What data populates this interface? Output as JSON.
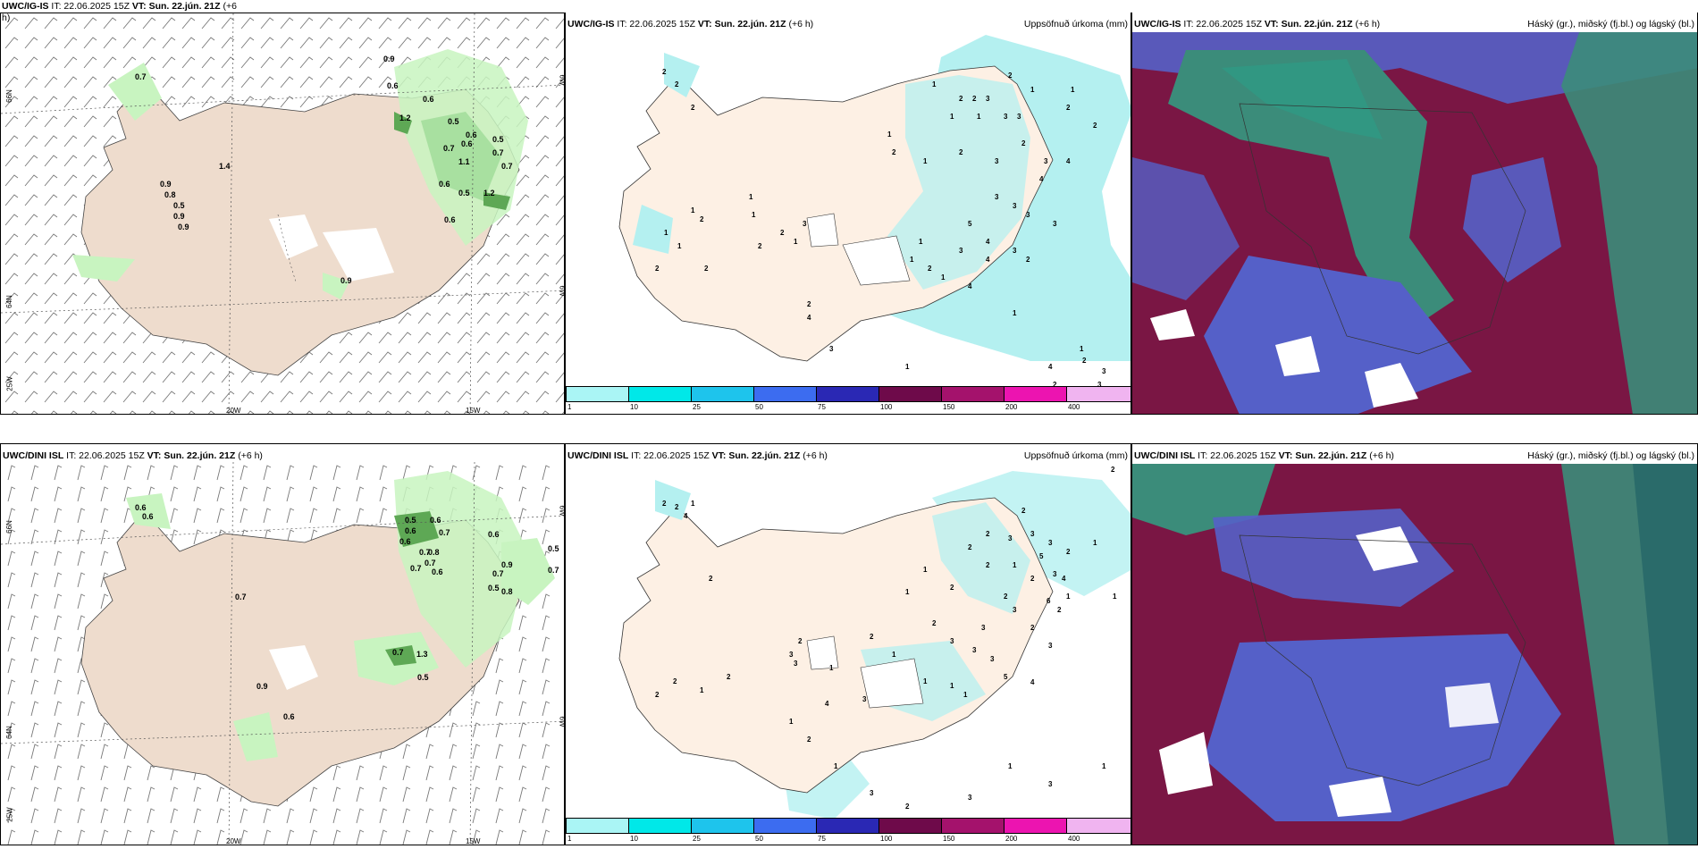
{
  "panels": {
    "wind_top": {
      "model": "UWC/IG-IS",
      "it": "IT: 22.06.2025 15Z",
      "vt": "VT: Sun. 22.jún. 21Z",
      "offset": "(+6",
      "offset_wrap": "h)"
    },
    "precip_top": {
      "model": "UWC/IG-IS",
      "it": "IT: 22.06.2025 15Z",
      "vt": "VT: Sun. 22.jún. 21Z",
      "offset": "(+6 h)",
      "title": "Uppsöfnuð úrkoma (mm)"
    },
    "cloud_top": {
      "model": "UWC/IG-IS",
      "it": "IT: 22.06.2025 15Z",
      "vt": "VT: Sun. 22.jún. 21Z",
      "offset": "(+6 h)",
      "title": "Háský (gr.), miðský (fj.bl.) og lágský (bl.)"
    },
    "wind_bottom": {
      "model": "UWC/DINI ISL",
      "it": "IT: 22.06.2025 15Z",
      "vt": "VT: Sun. 22.jún. 21Z",
      "offset": "(+6 h)"
    },
    "precip_bottom": {
      "model": "UWC/DINI ISL",
      "it": "IT: 22.06.2025 15Z",
      "vt": "VT: Sun. 22.jún. 21Z",
      "offset": "(+6 h)",
      "title": "Uppsöfnuð úrkoma (mm)"
    },
    "cloud_bottom": {
      "model": "UWC/DINI ISL",
      "it": "IT: 22.06.2025 15Z",
      "vt": "VT: Sun. 22.jún. 21Z",
      "offset": "(+6 h)",
      "title": "Háský (gr.), miðský (fj.bl.) og lágský (bl.)"
    }
  },
  "grid_labels": {
    "lat_66": "66N",
    "lat_64": "64N",
    "lon_25": "25W",
    "lon_20": "20W",
    "lon_15": "15W",
    "lon_6": "6W"
  },
  "wind_values_top": [
    "0.7",
    "0.9",
    "0.6",
    "0.6",
    "1.2",
    "0.5",
    "0.6",
    "0.5",
    "0.7",
    "0.6",
    "0.7",
    "0.7",
    "0.6",
    "1.1",
    "0.5",
    "1.2",
    "0.9",
    "0.8",
    "0.5",
    "0.9",
    "0.9",
    "0.6",
    "0.9",
    "1.4"
  ],
  "wind_values_bottom": [
    "0.6",
    "0.6",
    "0.5",
    "0.6",
    "0.6",
    "0.7",
    "0.6",
    "0.8",
    "0.7",
    "0.7",
    "0.6",
    "0.6",
    "0.5",
    "0.7",
    "0.8",
    "0.7",
    "0.7",
    "0.5",
    "0.7",
    "0.9",
    "1.3",
    "0.5",
    "0.9",
    "0.6",
    "0.7"
  ],
  "precip_values_top": [
    "2",
    "2",
    "2",
    "1",
    "2",
    "1",
    "1",
    "1",
    "2",
    "2",
    "3",
    "3",
    "3",
    "2",
    "1",
    "2",
    "1",
    "2",
    "1",
    "2",
    "3",
    "2",
    "3",
    "4",
    "1",
    "1",
    "1",
    "2",
    "1",
    "1",
    "2",
    "2",
    "2",
    "2",
    "1",
    "3",
    "4",
    "5",
    "3",
    "3",
    "3",
    "3",
    "4",
    "1",
    "1",
    "2",
    "1",
    "3",
    "4",
    "3",
    "2",
    "4",
    "1",
    "2",
    "1",
    "4",
    "3",
    "4",
    "1",
    "2",
    "3",
    "2",
    "3"
  ],
  "precip_values_bottom": [
    "2",
    "2",
    "4",
    "1",
    "2",
    "2",
    "2",
    "3",
    "3",
    "1",
    "2",
    "3",
    "2",
    "1",
    "2",
    "5",
    "3",
    "2",
    "4",
    "6",
    "1",
    "1",
    "2",
    "1",
    "2",
    "2",
    "3",
    "2",
    "3",
    "3",
    "1",
    "3",
    "2",
    "3",
    "3",
    "5",
    "2",
    "2",
    "2",
    "1",
    "4",
    "1",
    "1",
    "1",
    "3",
    "3",
    "1",
    "3",
    "1",
    "2",
    "1",
    "2",
    "2",
    "4",
    "2",
    "1",
    "3",
    "3",
    "1",
    "3",
    "1",
    "2"
  ],
  "colorbar_ticks": [
    "1",
    "10",
    "25",
    "50",
    "75",
    "100",
    "150",
    "200",
    "400"
  ],
  "colorbar_colors": [
    "#aaf5f5",
    "#00e8e8",
    "#1ec4ec",
    "#3c6cf0",
    "#2a28b4",
    "#6e0a4a",
    "#a4126c",
    "#ec14b0",
    "#f0b4f0"
  ],
  "colors": {
    "land": "#eedccd",
    "precip_land": "#fdf0e4",
    "wind_green_light": "#c8f4c0",
    "wind_green_dark": "#5ea855",
    "cloud_high": "#3b8c7a",
    "cloud_mid": "#7a1644",
    "cloud_low": "#5560c8"
  }
}
